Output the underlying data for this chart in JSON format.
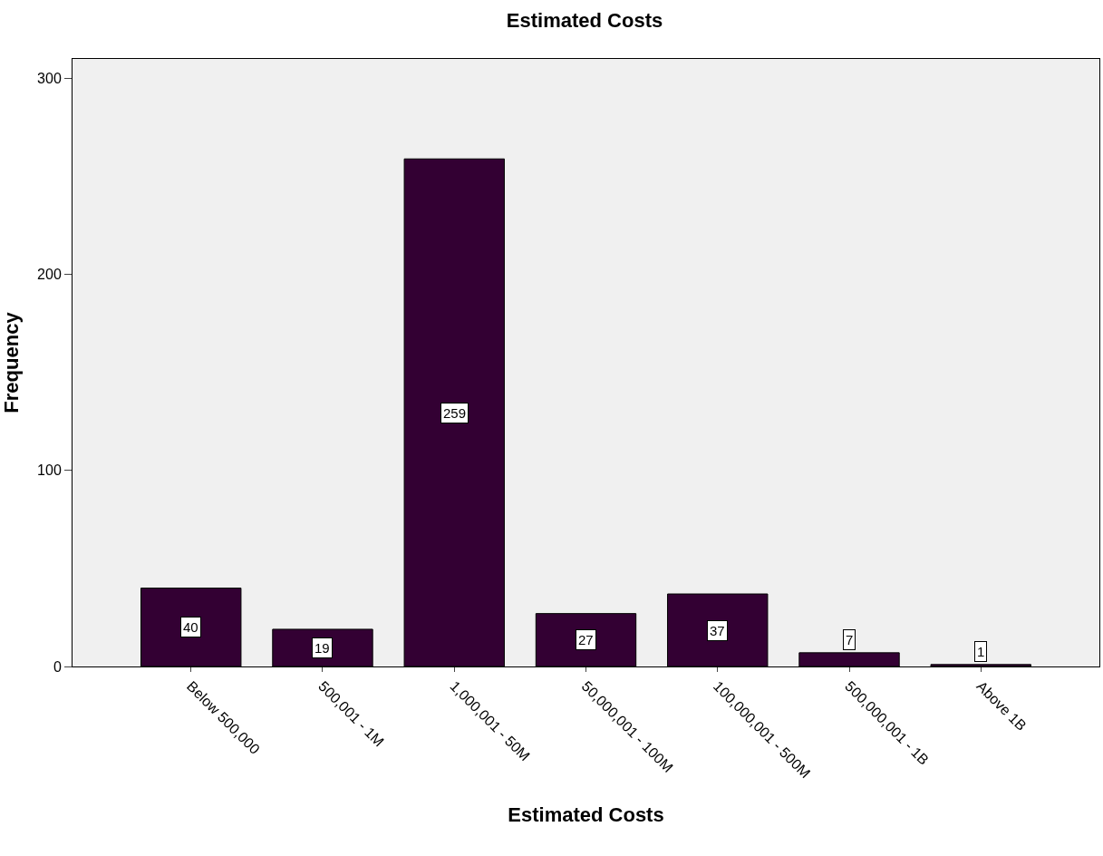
{
  "chart_data": {
    "type": "bar",
    "title": "Estimated Costs",
    "xlabel": "Estimated Costs",
    "ylabel": "Frequency",
    "categories": [
      "Below 500,000",
      "500,001 - 1M",
      "1,000,001 - 50M",
      "50,000,001 - 100M",
      "100,000,001 - 500M",
      "500,000,001 - 1B",
      "Above 1B"
    ],
    "values": [
      40,
      19,
      259,
      27,
      37,
      7,
      1
    ],
    "color": "#330033",
    "ylim": [
      0,
      310
    ],
    "yticks": [
      0,
      100,
      200,
      300
    ],
    "grid": false,
    "data_labels": true
  }
}
